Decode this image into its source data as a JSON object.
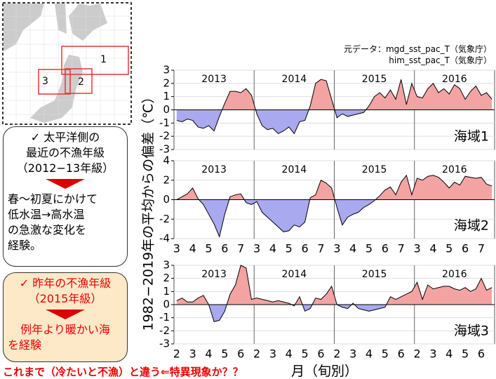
{
  "map": {
    "labels": [
      "1",
      "2",
      "3"
    ]
  },
  "box1": {
    "heading": "✓ 太平洋側の",
    "lines": [
      "最近の不漁年級",
      "（2012−13年級）"
    ],
    "body": [
      "春～初夏にかけて",
      "低水温→高水温",
      "の急激な変化を",
      "経験。"
    ]
  },
  "box2": {
    "heading": "✓ 昨年の不漁年級",
    "lines": [
      "（2015年級）"
    ],
    "body": [
      "例年より暖かい海",
      "を経験"
    ]
  },
  "source": [
    "元データ：mgd_sst_pac_T（気象庁）",
    "him_sst_pac_T（気象庁）"
  ],
  "y_axis_label": "1982−2019年の平均からの偏差（℃）",
  "x_axis_label": "月（旬別）",
  "footer": "これまで（冷たいと不漁）と違う⇐特異現象か？？",
  "chart_data": [
    {
      "type": "area",
      "region_label": "海域1",
      "year_labels": [
        "2013",
        "2014",
        "2015",
        "2016"
      ],
      "categories": [
        null,
        null,
        null,
        null,
        null,
        null,
        null,
        null,
        null,
        null,
        null,
        null,
        null,
        null,
        null,
        null,
        null,
        null,
        null,
        null,
        null,
        null,
        null,
        null,
        null,
        null,
        null,
        null,
        null,
        null,
        null,
        null,
        null,
        null,
        null,
        null,
        null,
        null,
        null,
        null,
        null,
        null,
        null,
        null,
        null,
        null,
        null,
        null,
        null,
        null,
        null,
        null,
        null,
        null,
        null,
        null,
        null,
        null,
        null,
        null
      ],
      "values": [
        -0.8,
        -0.9,
        -0.7,
        -0.8,
        -1.3,
        -1.4,
        -1.2,
        -1.6,
        -0.5,
        0.5,
        1.4,
        1.4,
        1.3,
        1.6,
        1.1,
        -0.3,
        -1.2,
        -1.5,
        -1.4,
        -1.8,
        -1.6,
        -1.3,
        -1.8,
        -0.9,
        -0.8,
        0.3,
        2.0,
        2.3,
        2.2,
        0.8,
        -0.6,
        -0.3,
        -0.5,
        -0.4,
        -0.3,
        -0.2,
        0.3,
        1.0,
        1.3,
        0.9,
        1.5,
        0.8,
        2.3,
        0.4,
        2.0,
        1.0,
        0.9,
        1.6,
        2.0,
        1.3,
        1.6,
        1.2,
        1.9,
        1.6,
        0.8,
        1.4,
        1.8,
        1.1,
        1.3,
        0.8
      ],
      "ylim": [
        -3,
        3
      ],
      "yticks": [
        -3,
        -2,
        -1,
        0,
        1,
        2,
        3
      ],
      "grid": true,
      "colors": {
        "positive": "#f4a3a3",
        "negative": "#a9a9f0"
      }
    },
    {
      "type": "area",
      "region_label": "海域2",
      "year_labels": [
        "2013",
        "2014",
        "2015",
        "2016"
      ],
      "categories": [
        "3",
        null,
        null,
        "4",
        null,
        null,
        "5",
        null,
        null,
        "6",
        null,
        null,
        "7",
        null,
        null,
        "3",
        null,
        null,
        "4",
        null,
        null,
        "5",
        null,
        null,
        "6",
        null,
        null,
        "7",
        null,
        null,
        "3",
        null,
        null,
        "4",
        null,
        null,
        "5",
        null,
        null,
        "6",
        null,
        null,
        "7",
        null,
        null,
        "3",
        null,
        null,
        "4",
        null,
        null,
        "5",
        null,
        null,
        "6",
        null,
        null,
        "7",
        null,
        null
      ],
      "values": [
        0,
        0.3,
        0.6,
        1.2,
        0.1,
        -0.5,
        -1.5,
        -2.5,
        -3.8,
        -1.5,
        0.3,
        0.5,
        0.6,
        -0.3,
        -0.5,
        -0.2,
        -1.3,
        -1.8,
        -2.3,
        -2.8,
        -3.3,
        -3.2,
        -2.6,
        -2.8,
        -2.3,
        0.2,
        0.5,
        2.0,
        1.7,
        1.2,
        -0.8,
        -2.6,
        -1.8,
        -1.5,
        -1.3,
        -0.8,
        -0.5,
        -0.1,
        0.4,
        1.0,
        1.3,
        0.5,
        1.8,
        2.5,
        0.5,
        2.2,
        2.0,
        2.4,
        2.5,
        2.3,
        1.8,
        1.2,
        1.8,
        1.5,
        2.4,
        2.3,
        2.2,
        2.3,
        1.6,
        1.4
      ],
      "ylim": [
        -4,
        4
      ],
      "yticks": [
        -4,
        -2,
        0,
        2,
        4
      ],
      "grid": true,
      "colors": {
        "positive": "#f4a3a3",
        "negative": "#a9a9f0"
      }
    },
    {
      "type": "area",
      "region_label": "海域3",
      "year_labels": [
        "2013",
        "2014",
        "2015",
        "2016"
      ],
      "categories": [
        "2",
        null,
        null,
        "3",
        null,
        null,
        "4",
        null,
        null,
        "5",
        null,
        null,
        "6",
        null,
        null,
        "2",
        null,
        null,
        "3",
        null,
        null,
        "4",
        null,
        null,
        "5",
        null,
        null,
        "6",
        null,
        null,
        "2",
        null,
        null,
        "3",
        null,
        null,
        "4",
        null,
        null,
        "5",
        null,
        null,
        "6",
        null,
        null,
        "2",
        null,
        null,
        "3",
        null,
        null,
        "4",
        null,
        null,
        "5",
        null,
        null,
        "6",
        null,
        null
      ],
      "values": [
        0.3,
        0.5,
        0.2,
        0.2,
        0.5,
        0.7,
        0,
        -1.3,
        -1.2,
        -0.5,
        0.8,
        1.5,
        3.0,
        2.8,
        0.4,
        0.5,
        0.4,
        0.3,
        0.2,
        0.3,
        0.2,
        0.1,
        -0.1,
        0.6,
        -0.5,
        -0.3,
        0.5,
        0.4,
        0.8,
        1.4,
        0,
        -0.2,
        -0.3,
        0.1,
        -0.3,
        -0.4,
        -0.5,
        -0.4,
        -0.3,
        -0.2,
        0.6,
        0.4,
        0.6,
        0.8,
        1.0,
        1.7,
        0.4,
        1.5,
        1.2,
        1.3,
        1.4,
        1.4,
        1.2,
        1.1,
        1.3,
        1.0,
        1.2,
        2.0,
        1.1,
        1.3
      ],
      "ylim": [
        -3,
        3
      ],
      "yticks": [
        -3,
        -2,
        -1,
        0,
        1,
        2,
        3
      ],
      "grid": true,
      "colors": {
        "positive": "#f4a3a3",
        "negative": "#a9a9f0"
      }
    }
  ]
}
